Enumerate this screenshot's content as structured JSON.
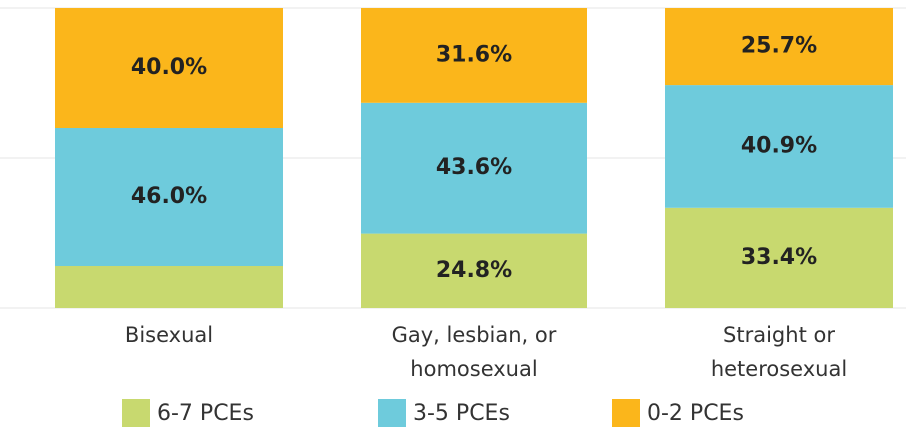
{
  "chart_data": {
    "type": "stacked_bar",
    "categories": [
      "Bisexual",
      "Gay, lesbian, or\nhomosexual",
      "Straight or\nheterosexual"
    ],
    "series": [
      {
        "name": "6-7 PCEs",
        "color": "#c8d96f",
        "values": [
          14,
          24.8,
          33.4
        ],
        "value_labels": [
          null,
          "24.8%",
          "33.4%"
        ]
      },
      {
        "name": "3-5 PCEs",
        "color": "#6ecbdc",
        "values": [
          46,
          43.6,
          40.9
        ],
        "value_labels": [
          "46.0%",
          "43.6%",
          "40.9%"
        ]
      },
      {
        "name": "0-2 PCEs",
        "color": "#fbb61b",
        "values": [
          40,
          31.6,
          25.7
        ],
        "value_labels": [
          "40.0%",
          "31.6%",
          "25.7%"
        ]
      }
    ],
    "ylim": [
      0,
      100
    ],
    "yticks": [
      0,
      50,
      100
    ],
    "grid": true,
    "legend": "bottom"
  }
}
